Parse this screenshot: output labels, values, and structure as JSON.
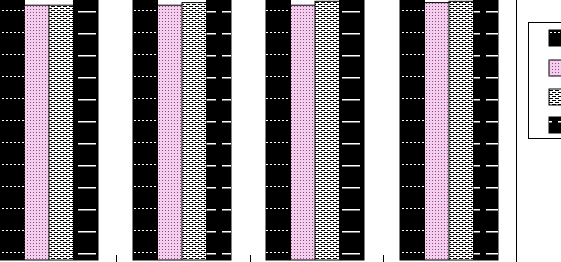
{
  "chart_data": {
    "type": "bar",
    "categories": [
      null,
      null,
      null,
      null
    ],
    "series": [
      {
        "color": "#000000",
        "values": [
          100,
          100,
          100,
          100
        ]
      },
      {
        "color": "#f0d0ec",
        "values": [
          98,
          98,
          98,
          99
        ]
      },
      {
        "color": "#ffffff",
        "values": [
          98,
          99,
          99.5,
          99.5
        ]
      },
      {
        "color": "#000000",
        "values": [
          100,
          100,
          100,
          100
        ]
      }
    ],
    "ylim": [
      0,
      100
    ],
    "legend": "right"
  }
}
